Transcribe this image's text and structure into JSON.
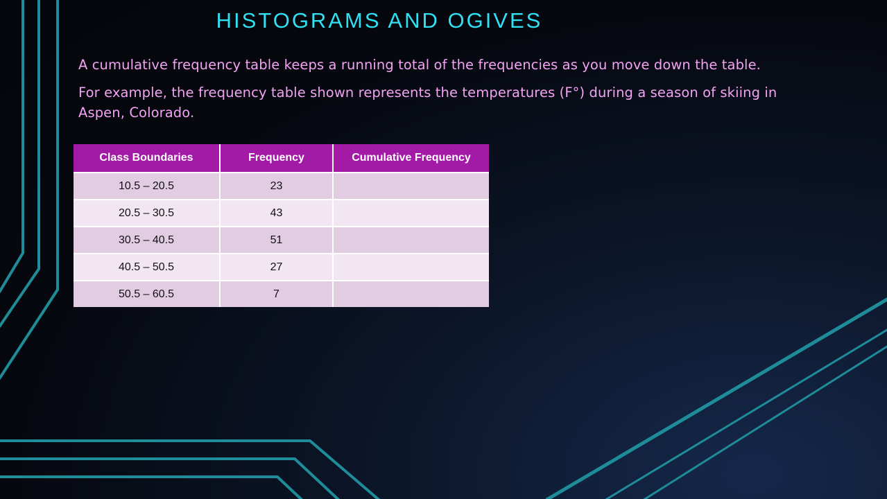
{
  "slide": {
    "title": "HISTOGRAMS AND OGIVES",
    "paragraphs": [
      "A cumulative frequency table keeps a running total of the frequencies as you move down the table.",
      "For example, the frequency table shown represents the temperatures (F°) during a season of skiing in Aspen, Colorado."
    ]
  },
  "table": {
    "headers": [
      "Class Boundaries",
      "Frequency",
      "Cumulative Frequency"
    ],
    "rows": [
      [
        "10.5 – 20.5",
        "23",
        ""
      ],
      [
        "20.5 – 30.5",
        "43",
        ""
      ],
      [
        "30.5 – 40.5",
        "51",
        ""
      ],
      [
        "40.5 – 50.5",
        "27",
        ""
      ],
      [
        "50.5 – 60.5",
        "7",
        ""
      ]
    ]
  },
  "colors": {
    "title": "#31e0f2",
    "body_text": "#f2a3f2",
    "header_bg": "#a21aa6",
    "row_odd": "#e2cce2",
    "row_even": "#f1e6f1",
    "decor_line": "#1e8c99"
  }
}
